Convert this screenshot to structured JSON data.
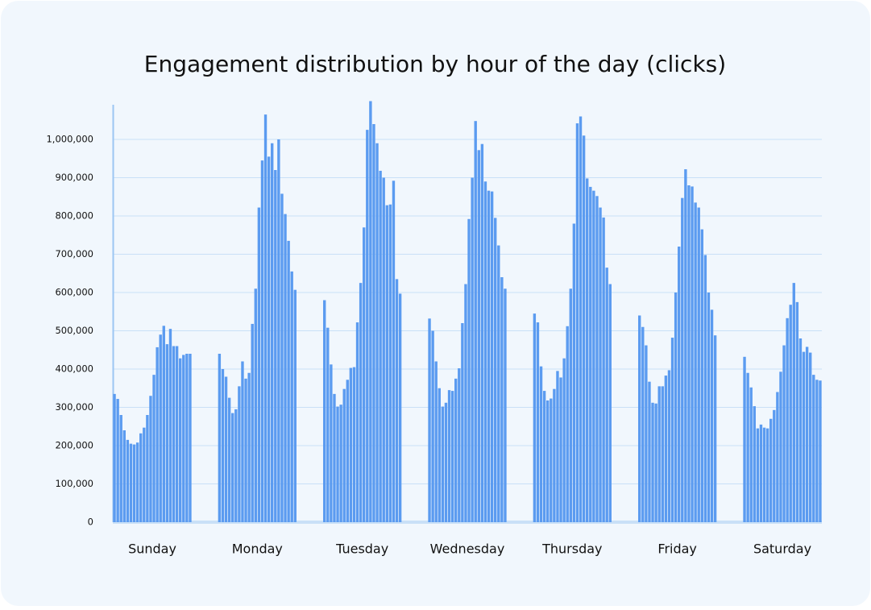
{
  "chart_data": {
    "type": "grouped-bar",
    "title": "Engagement distribution by hour of the day (clicks)",
    "color": "#5b9bf0",
    "grid": true,
    "categories": [
      "Sunday",
      "Monday",
      "Tuesday",
      "Wednesday",
      "Thursday",
      "Friday",
      "Saturday"
    ],
    "values": [
      [
        335000,
        322000,
        280000,
        240000,
        215000,
        205000,
        203000,
        208000,
        232000,
        247000,
        280000,
        330000,
        385000,
        457000,
        490000,
        513000,
        465000,
        505000,
        460000,
        460000,
        428000,
        437000,
        440000,
        440000
      ],
      [
        440000,
        400000,
        380000,
        325000,
        285000,
        295000,
        355000,
        420000,
        375000,
        390000,
        518000,
        610000,
        822000,
        945000,
        1065000,
        955000,
        990000,
        920000,
        1000000,
        858000,
        805000,
        735000,
        655000,
        607000
      ],
      [
        580000,
        508000,
        412000,
        335000,
        302000,
        307000,
        348000,
        372000,
        403000,
        405000,
        522000,
        625000,
        770000,
        1025000,
        1100000,
        1040000,
        990000,
        918000,
        900000,
        828000,
        830000,
        892000,
        635000,
        597000
      ],
      [
        532000,
        500000,
        420000,
        350000,
        302000,
        312000,
        345000,
        343000,
        375000,
        402000,
        520000,
        622000,
        792000,
        900000,
        1048000,
        972000,
        988000,
        890000,
        866000,
        864000,
        795000,
        723000,
        640000,
        610000
      ],
      [
        545000,
        522000,
        407000,
        343000,
        318000,
        323000,
        348000,
        395000,
        378000,
        428000,
        512000,
        610000,
        780000,
        1042000,
        1060000,
        1010000,
        898000,
        876000,
        866000,
        852000,
        822000,
        796000,
        665000,
        622000
      ],
      [
        540000,
        510000,
        462000,
        367000,
        312000,
        310000,
        355000,
        355000,
        383000,
        397000,
        482000,
        600000,
        720000,
        847000,
        922000,
        880000,
        877000,
        835000,
        822000,
        765000,
        698000,
        600000,
        555000,
        488000
      ],
      [
        432000,
        390000,
        352000,
        303000,
        245000,
        255000,
        247000,
        245000,
        270000,
        293000,
        340000,
        393000,
        462000,
        533000,
        568000,
        625000,
        575000,
        480000,
        445000,
        458000,
        443000,
        385000,
        372000,
        370000
      ]
    ],
    "ylim": [
      0,
      1100000
    ],
    "yticks": [
      0,
      {
        "value": 100000,
        "label": "100,000"
      },
      {
        "value": 200000,
        "label": "200,000"
      },
      {
        "value": 300000,
        "label": "300,000"
      },
      {
        "value": 400000,
        "label": "400,000"
      },
      {
        "value": 500000,
        "label": "500,000"
      },
      {
        "value": 600000,
        "label": "600,000"
      },
      {
        "value": 700000,
        "label": "700,000"
      },
      {
        "value": 800000,
        "label": "800,000"
      },
      {
        "value": 900000,
        "label": "900,000"
      },
      {
        "value": 1000000,
        "label": "1,000,000"
      }
    ]
  }
}
